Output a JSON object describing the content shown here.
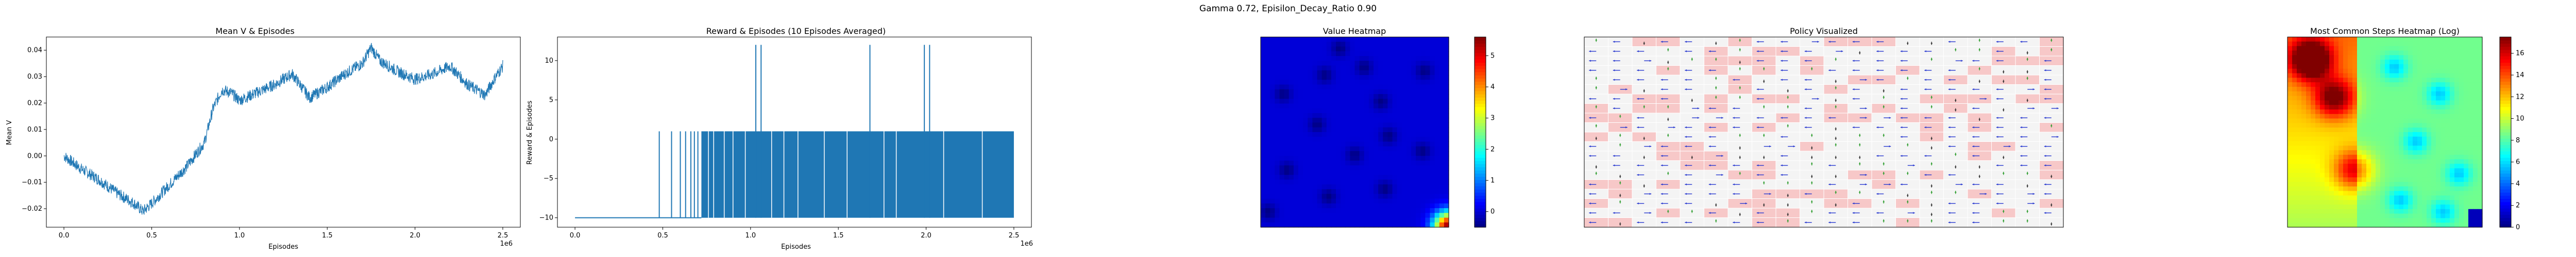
{
  "figure": {
    "suptitle": "Gamma  0.72, Episilon_Decay_Ratio 0.90"
  },
  "chart_data": [
    {
      "type": "line",
      "title": "Mean V & Episodes",
      "xlabel": "Episodes",
      "ylabel": "Mean V",
      "x_multiplier_label": "1e6",
      "xlim": [
        -0.1,
        2.6
      ],
      "ylim": [
        -0.027,
        0.045
      ],
      "xticks": [
        0.0,
        0.5,
        1.0,
        1.5,
        2.0,
        2.5
      ],
      "xtick_labels": [
        "0.0",
        "0.5",
        "1.0",
        "1.5",
        "2.0",
        "2.5"
      ],
      "yticks": [
        -0.02,
        -0.01,
        0.0,
        0.01,
        0.02,
        0.03,
        0.04
      ],
      "ytick_labels": [
        "−0.02",
        "−0.01",
        "0.00",
        "0.01",
        "0.02",
        "0.03",
        "0.04"
      ],
      "color": "#1f77b4",
      "series": [
        {
          "x": [
            0.0,
            0.1,
            0.2,
            0.3,
            0.4,
            0.45,
            0.5,
            0.6,
            0.7,
            0.8,
            0.85,
            0.9,
            0.95,
            1.0,
            1.1,
            1.2,
            1.3,
            1.4,
            1.5,
            1.6,
            1.7,
            1.75,
            1.8,
            1.9,
            2.0,
            2.1,
            2.2,
            2.3,
            2.4,
            2.45,
            2.5
          ],
          "y": [
            0.0,
            -0.005,
            -0.009,
            -0.014,
            -0.018,
            -0.021,
            -0.018,
            -0.011,
            -0.004,
            0.005,
            0.018,
            0.025,
            0.024,
            0.021,
            0.024,
            0.027,
            0.031,
            0.022,
            0.026,
            0.031,
            0.035,
            0.041,
            0.036,
            0.032,
            0.029,
            0.031,
            0.034,
            0.027,
            0.023,
            0.029,
            0.034
          ]
        }
      ]
    },
    {
      "type": "bar",
      "title": "Reward & Episodes (10 Episodes Averaged)",
      "xlabel": "Episodes",
      "ylabel": "Reward & Episodes",
      "x_multiplier_label": "1e6",
      "xlim": [
        -0.1,
        2.6
      ],
      "ylim": [
        -11.2,
        13
      ],
      "xticks": [
        0.0,
        0.5,
        1.0,
        1.5,
        2.0,
        2.5
      ],
      "xtick_labels": [
        "0.0",
        "0.5",
        "1.0",
        "1.5",
        "2.0",
        "2.5"
      ],
      "yticks": [
        -10,
        -5,
        0,
        5,
        10
      ],
      "ytick_labels": [
        "−10",
        "−5",
        "0",
        "5",
        "10"
      ],
      "color": "#1f77b4",
      "baseline": -10,
      "dense_band": {
        "x_start": 0.72,
        "x_end": 2.5,
        "top": 1
      },
      "bars": [
        {
          "x": 0.48,
          "top": 1
        },
        {
          "x": 0.55,
          "top": 1
        },
        {
          "x": 0.6,
          "top": 1
        },
        {
          "x": 0.63,
          "top": 1
        },
        {
          "x": 0.66,
          "top": 1
        },
        {
          "x": 0.68,
          "top": 1
        },
        {
          "x": 0.7,
          "top": 1
        },
        {
          "x": 1.03,
          "top": 12
        },
        {
          "x": 1.06,
          "top": 12
        },
        {
          "x": 1.68,
          "top": 12
        },
        {
          "x": 1.99,
          "top": 12
        },
        {
          "x": 2.02,
          "top": 12
        }
      ],
      "gaps": [
        0.76,
        0.79,
        0.85,
        0.9,
        0.97,
        1.12,
        1.19,
        1.27,
        1.42,
        1.55,
        1.76,
        1.83,
        2.1,
        2.32
      ]
    },
    {
      "type": "heatmap",
      "title": "Value Heatmap",
      "colormap": "jet",
      "colorbar_ticks": [
        0,
        1,
        2,
        3,
        4,
        5
      ],
      "colorbar_tick_labels": [
        "0",
        "1",
        "2",
        "3",
        "4",
        "5"
      ],
      "vmin": -0.5,
      "vmax": 5.6,
      "background_value": 0.0,
      "hot_corner": "bottom-right"
    },
    {
      "type": "heatmap",
      "title": "Policy Visualized",
      "grid_size": 20,
      "arrow_colors": {
        "blue": "#2a3ad0",
        "green": "#2e9d2e",
        "gray": "#333333"
      },
      "highlight_color": "#f7c8c8"
    },
    {
      "type": "heatmap",
      "title": "Most Common Steps Heatmap (Log)",
      "colormap": "jet",
      "colorbar_ticks": [
        0,
        2,
        4,
        6,
        8,
        10,
        12,
        14,
        16
      ],
      "colorbar_tick_labels": [
        "0",
        "2",
        "4",
        "6",
        "8",
        "10",
        "12",
        "14",
        "16"
      ],
      "vmin": 0,
      "vmax": 17.5
    }
  ]
}
